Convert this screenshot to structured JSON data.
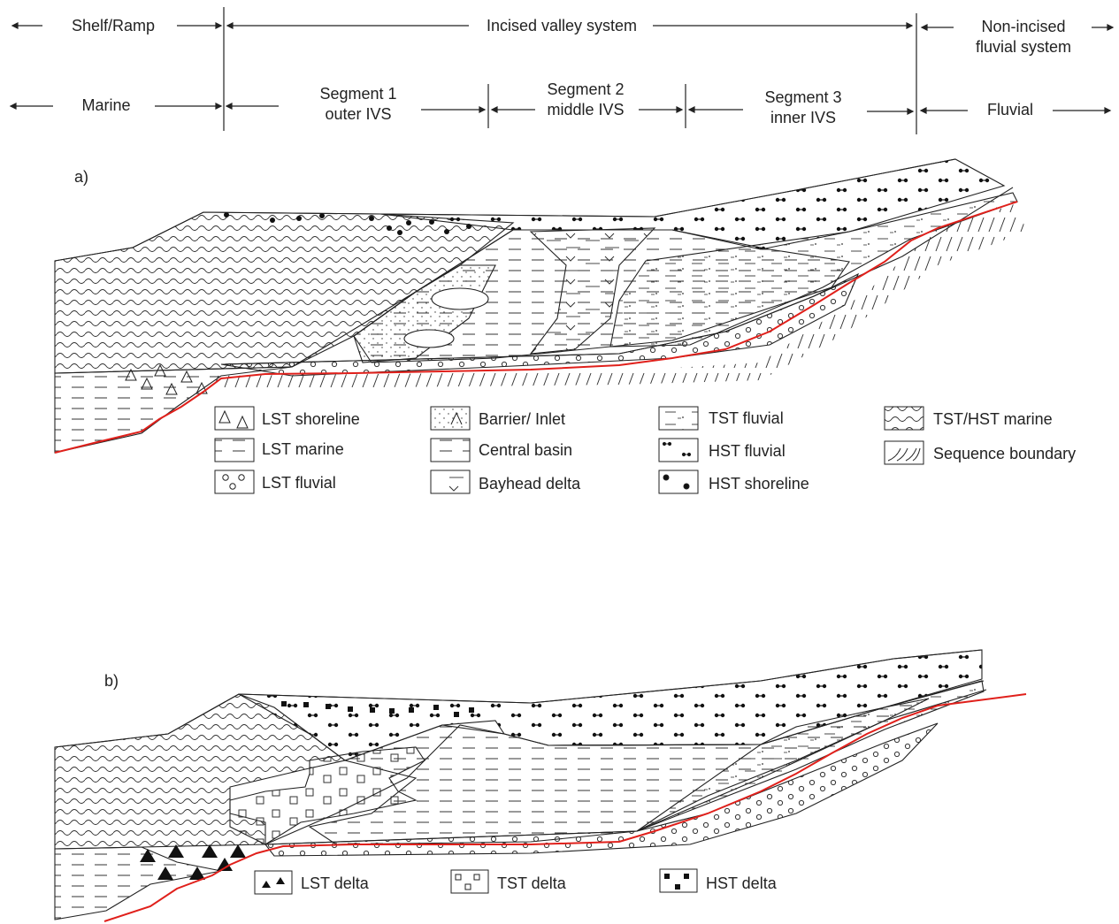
{
  "header": {
    "row1": {
      "shelf_ramp": "Shelf/Ramp",
      "incised_valley_system": "Incised valley system",
      "non_incised_fluvial_system": [
        "Non-incised",
        "fluvial system"
      ]
    },
    "row2": {
      "marine": "Marine",
      "segment1": [
        "Segment 1",
        "outer IVS"
      ],
      "segment2": [
        "Segment 2",
        "middle IVS"
      ],
      "segment3": [
        "Segment 3",
        "inner IVS"
      ],
      "fluvial": "Fluvial"
    }
  },
  "panel_a": {
    "label": "a)",
    "legend": [
      "LST shoreline",
      "LST marine",
      "LST fluvial",
      "Barrier/ Inlet",
      "Central basin",
      "Bayhead delta",
      "TST fluvial",
      "HST fluvial",
      "HST shoreline",
      "TST/HST marine",
      "Sequence boundary"
    ]
  },
  "panel_b": {
    "label": "b)",
    "legend": [
      "LST delta",
      "TST delta",
      "HST delta"
    ]
  },
  "colors": {
    "ink": "#222222",
    "sequence_boundary": "#e0201b"
  }
}
